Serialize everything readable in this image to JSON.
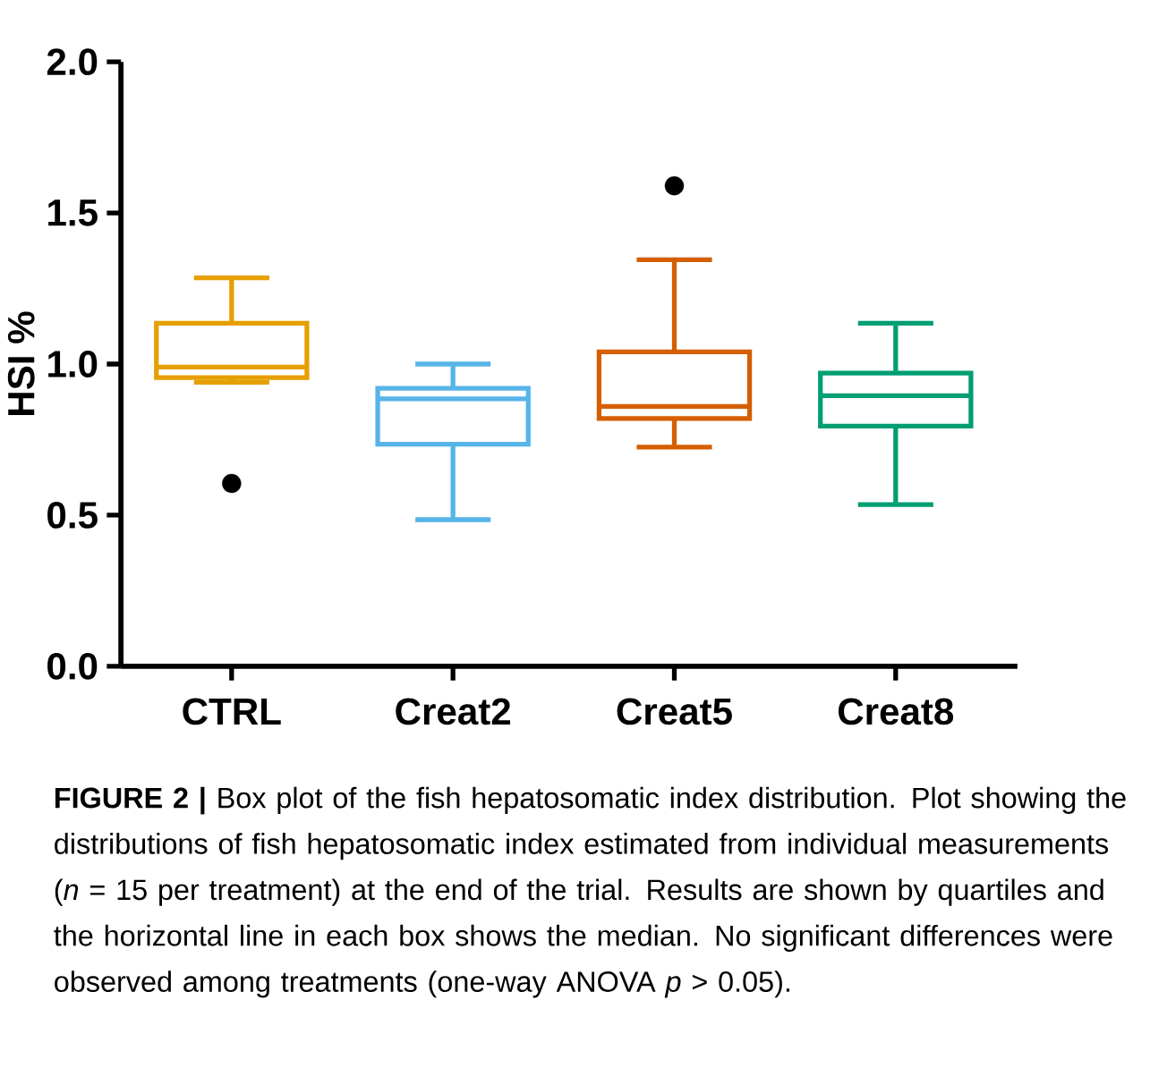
{
  "chart_data": {
    "type": "box",
    "ylabel": "HSI %",
    "categories": [
      "CTRL",
      "Creat2",
      "Creat5",
      "Creat8"
    ],
    "colors": [
      "#e69f00",
      "#56b4e9",
      "#d55e00",
      "#009e73"
    ],
    "boxes": [
      {
        "low": 0.94,
        "q1": 0.955,
        "median": 0.99,
        "q3": 1.135,
        "high": 1.285,
        "outliers": [
          0.605
        ]
      },
      {
        "low": 0.485,
        "q1": 0.735,
        "median": 0.885,
        "q3": 0.92,
        "high": 1.0
      },
      {
        "low": 0.725,
        "q1": 0.82,
        "median": 0.86,
        "q3": 1.04,
        "high": 1.345,
        "outliers": [
          1.59
        ]
      },
      {
        "low": 0.535,
        "q1": 0.795,
        "median": 0.895,
        "q3": 0.97,
        "high": 1.135
      }
    ],
    "ylim": [
      0,
      2
    ],
    "yticks": [
      {
        "value": 0,
        "label": "0.0"
      },
      {
        "value": 0.5,
        "label": "0.5"
      },
      {
        "value": 1,
        "label": "1.0"
      },
      {
        "value": 1.5,
        "label": "1.5"
      },
      {
        "value": 2,
        "label": "2.0"
      }
    ],
    "annotations": [
      "**FIGURE 2 |** Box plot of the fish hepatosomatic index distribution. Plot showing the distributions of fish hepatosomatic index estimated from individual measurements (*n* = 15 per treatment) at the end of the trial. Results are shown by quartiles and the horizontal line in each box shows the median. No significant differences were observed among treatments (one-way ANOVA *p* > 0.05)."
    ]
  }
}
